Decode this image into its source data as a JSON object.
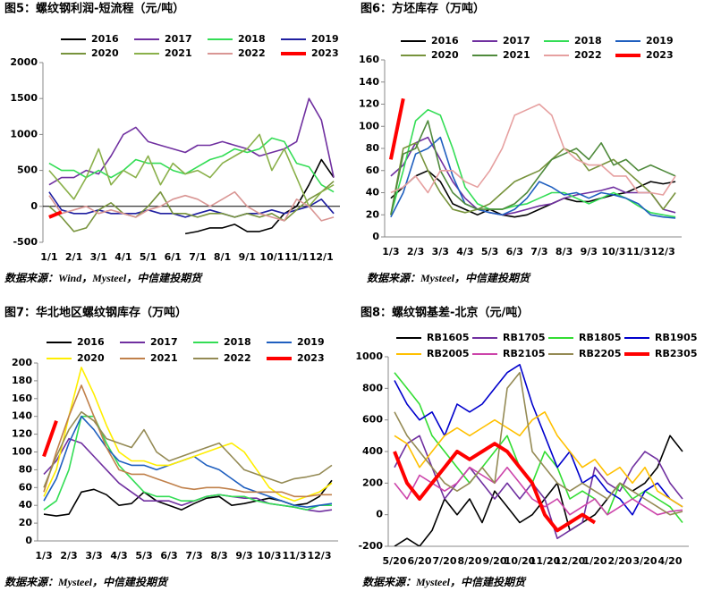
{
  "chart_data": [
    {
      "type": "line",
      "title": "图5：螺纹钢利润-短流程（元/吨）",
      "source": "数据来源：Wind，Mysteel，中信建投期货",
      "categories": [
        "1/1",
        null,
        "2/1",
        null,
        "3/1",
        null,
        "4/1",
        null,
        "5/1",
        null,
        "6/1",
        null,
        "7/1",
        null,
        "8/1",
        null,
        "9/1",
        null,
        "10/1",
        null,
        "11/1",
        null,
        "12/1",
        null
      ],
      "ylim": [
        -500,
        2000
      ],
      "yticks": [
        -500,
        0,
        500,
        1000,
        1500,
        2000
      ],
      "x_axis_at_zero": true,
      "series": [
        {
          "name": "2016",
          "color": "#000000",
          "values": [
            null,
            null,
            null,
            null,
            null,
            null,
            null,
            null,
            null,
            null,
            null,
            -380,
            -350,
            -300,
            -300,
            -250,
            -350,
            -350,
            -300,
            -100,
            0,
            300,
            650,
            400
          ]
        },
        {
          "name": "2017",
          "color": "#7030a0",
          "values": [
            300,
            400,
            400,
            500,
            450,
            700,
            1000,
            1100,
            900,
            850,
            800,
            750,
            850,
            850,
            900,
            850,
            800,
            700,
            750,
            800,
            900,
            1500,
            1200,
            400
          ]
        },
        {
          "name": "2018",
          "color": "#33dd55",
          "values": [
            600,
            500,
            500,
            400,
            500,
            400,
            500,
            650,
            600,
            600,
            500,
            450,
            550,
            650,
            700,
            800,
            750,
            800,
            950,
            900,
            600,
            550,
            300,
            200
          ]
        },
        {
          "name": "2019",
          "color": "#1f1fa0",
          "values": [
            200,
            -50,
            -100,
            -100,
            -50,
            -100,
            -100,
            -100,
            -50,
            -100,
            -100,
            -150,
            -100,
            -50,
            -100,
            -150,
            -100,
            -100,
            -50,
            -100,
            -50,
            0,
            100,
            -100
          ]
        },
        {
          "name": "2020",
          "color": "#77933c",
          "values": [
            0,
            -150,
            -350,
            -300,
            -50,
            50,
            -100,
            -150,
            0,
            200,
            -100,
            -100,
            -150,
            -100,
            -100,
            -150,
            -100,
            -150,
            -100,
            -200,
            -50,
            100,
            200,
            350
          ]
        },
        {
          "name": "2021",
          "color": "#8ab04a",
          "values": [
            500,
            300,
            100,
            400,
            800,
            300,
            500,
            400,
            700,
            300,
            600,
            450,
            500,
            400,
            600,
            700,
            800,
            1000,
            500,
            800,
            400,
            0,
            200,
            300
          ]
        },
        {
          "name": "2022",
          "color": "#d99694",
          "values": [
            150,
            -100,
            -50,
            0,
            -100,
            -50,
            -100,
            -150,
            -50,
            0,
            100,
            150,
            100,
            0,
            100,
            200,
            0,
            -100,
            -150,
            -200,
            100,
            0,
            -200,
            -150
          ]
        },
        {
          "name": "2023",
          "color": "#ff0000",
          "values": [
            -150,
            -80,
            null,
            null,
            null,
            null,
            null,
            null,
            null,
            null,
            null,
            null,
            null,
            null,
            null,
            null,
            null,
            null,
            null,
            null,
            null,
            null,
            null,
            null
          ]
        }
      ]
    },
    {
      "type": "line",
      "title": "图6：方坯库存（万吨）",
      "source": "数据来源：Mysteel，中信建投期货",
      "categories": [
        "1/3",
        null,
        "2/3",
        null,
        "3/3",
        null,
        "4/3",
        null,
        "5/3",
        null,
        "6/3",
        null,
        "7/3",
        null,
        "8/3",
        null,
        "9/3",
        null,
        "10/3",
        null,
        "11/3",
        null,
        "12/3",
        null
      ],
      "ylim": [
        0,
        160
      ],
      "yticks": [
        0,
        20,
        40,
        60,
        80,
        100,
        120,
        140,
        160
      ],
      "series": [
        {
          "name": "2016",
          "color": "#000000",
          "values": [
            35,
            45,
            55,
            60,
            50,
            30,
            25,
            20,
            25,
            20,
            18,
            20,
            25,
            30,
            35,
            32,
            32,
            35,
            38,
            40,
            45,
            50,
            48,
            50
          ]
        },
        {
          "name": "2017",
          "color": "#7030a0",
          "values": [
            55,
            65,
            85,
            90,
            70,
            50,
            35,
            25,
            22,
            20,
            22,
            25,
            28,
            30,
            35,
            38,
            40,
            42,
            45,
            40,
            40,
            40,
            25,
            22
          ]
        },
        {
          "name": "2018",
          "color": "#33dd55",
          "values": [
            20,
            60,
            105,
            115,
            110,
            80,
            45,
            30,
            25,
            25,
            28,
            30,
            35,
            40,
            40,
            35,
            30,
            35,
            40,
            35,
            28,
            22,
            20,
            18
          ]
        },
        {
          "name": "2019",
          "color": "#1f5fbf",
          "values": [
            18,
            40,
            75,
            80,
            90,
            55,
            30,
            25,
            22,
            20,
            25,
            35,
            50,
            45,
            38,
            40,
            35,
            40,
            38,
            35,
            30,
            20,
            18,
            17
          ]
        },
        {
          "name": "2020",
          "color": "#77933c",
          "values": [
            20,
            80,
            85,
            60,
            40,
            25,
            22,
            25,
            30,
            40,
            50,
            55,
            60,
            70,
            80,
            75,
            60,
            65,
            70,
            60,
            50,
            40,
            25,
            40
          ]
        },
        {
          "name": "2021",
          "color": "#4f8a3c",
          "values": [
            20,
            75,
            80,
            105,
            60,
            40,
            30,
            25,
            25,
            25,
            30,
            40,
            55,
            70,
            75,
            80,
            70,
            85,
            65,
            70,
            60,
            65,
            60,
            55
          ]
        },
        {
          "name": "2022",
          "color": "#e6a0a0",
          "values": [
            40,
            45,
            55,
            40,
            60,
            60,
            50,
            45,
            60,
            80,
            110,
            115,
            120,
            110,
            80,
            70,
            65,
            65,
            55,
            55,
            40,
            40,
            38,
            55
          ]
        },
        {
          "name": "2023",
          "color": "#ff0000",
          "values": [
            70,
            125,
            null,
            null,
            null,
            null,
            null,
            null,
            null,
            null,
            null,
            null,
            null,
            null,
            null,
            null,
            null,
            null,
            null,
            null,
            null,
            null,
            null,
            null
          ]
        }
      ]
    },
    {
      "type": "line",
      "title": "图7：华北地区螺纹钢库存（万吨）",
      "source": "数据来源：Mysteel，中信建投期货",
      "categories": [
        "1/3",
        null,
        "2/3",
        null,
        "3/3",
        null,
        "4/3",
        null,
        "5/3",
        null,
        "6/3",
        null,
        "7/3",
        null,
        "8/3",
        null,
        "9/3",
        null,
        "10/3",
        null,
        "11/3",
        null,
        "12/3",
        null
      ],
      "ylim": [
        0,
        200
      ],
      "yticks": [
        0,
        20,
        40,
        60,
        80,
        100,
        120,
        140,
        160,
        180,
        200
      ],
      "series": [
        {
          "name": "2016",
          "color": "#000000",
          "values": [
            30,
            28,
            30,
            55,
            58,
            52,
            40,
            42,
            55,
            45,
            40,
            35,
            42,
            48,
            50,
            40,
            42,
            45,
            48,
            45,
            40,
            42,
            50,
            68
          ]
        },
        {
          "name": "2017",
          "color": "#7030a0",
          "values": [
            75,
            90,
            115,
            110,
            95,
            80,
            65,
            55,
            45,
            45,
            45,
            40,
            45,
            50,
            52,
            50,
            48,
            48,
            42,
            40,
            38,
            35,
            33,
            35
          ]
        },
        {
          "name": "2018",
          "color": "#33dd55",
          "values": [
            35,
            45,
            80,
            140,
            140,
            110,
            85,
            70,
            55,
            50,
            50,
            45,
            45,
            50,
            52,
            50,
            50,
            45,
            42,
            40,
            38,
            35,
            40,
            40
          ]
        },
        {
          "name": "2019",
          "color": "#1f5fbf",
          "values": [
            45,
            70,
            110,
            140,
            125,
            105,
            90,
            85,
            85,
            80,
            85,
            90,
            95,
            85,
            80,
            70,
            60,
            55,
            50,
            45,
            40,
            38,
            40,
            42
          ]
        },
        {
          "name": "2020",
          "color": "#ffee00",
          "values": [
            50,
            80,
            140,
            195,
            165,
            130,
            100,
            90,
            90,
            85,
            85,
            90,
            95,
            100,
            105,
            110,
            100,
            80,
            60,
            50,
            45,
            50,
            55,
            65
          ]
        },
        {
          "name": "2021",
          "color": "#c0804a",
          "values": [
            55,
            100,
            140,
            175,
            140,
            105,
            80,
            75,
            75,
            70,
            65,
            60,
            58,
            60,
            60,
            58,
            55,
            55,
            55,
            55,
            50,
            50,
            52,
            52
          ]
        },
        {
          "name": "2022",
          "color": "#948a54",
          "values": [
            60,
            95,
            125,
            145,
            135,
            115,
            110,
            105,
            125,
            100,
            90,
            95,
            100,
            105,
            110,
            95,
            80,
            75,
            70,
            65,
            70,
            72,
            75,
            85
          ]
        },
        {
          "name": "2023",
          "color": "#ff0000",
          "values": [
            95,
            135,
            null,
            null,
            null,
            null,
            null,
            null,
            null,
            null,
            null,
            null,
            null,
            null,
            null,
            null,
            null,
            null,
            null,
            null,
            null,
            null,
            null,
            null
          ]
        }
      ]
    },
    {
      "type": "line",
      "title": "图8：螺纹钢基差-北京（元/吨）",
      "source": "数据来源：Mysteel，中信建投期货",
      "categories": [
        "5/20",
        null,
        "6/20",
        null,
        "7/20",
        null,
        "8/20",
        null,
        "9/20",
        null,
        "10/20",
        null,
        "11/20",
        null,
        "12/20",
        null,
        "1/20",
        null,
        "2/20",
        null,
        "3/20",
        null,
        "4/20",
        null
      ],
      "ylim": [
        -200,
        1000
      ],
      "yticks": [
        -200,
        0,
        200,
        400,
        600,
        800,
        1000
      ],
      "series": [
        {
          "name": "RB1605",
          "color": "#000000",
          "values": [
            -200,
            -150,
            -200,
            -100,
            100,
            0,
            100,
            -50,
            150,
            50,
            -50,
            0,
            100,
            200,
            -100,
            -50,
            0,
            100,
            200,
            150,
            200,
            300,
            500,
            400
          ]
        },
        {
          "name": "RB1705",
          "color": "#7030a0",
          "values": [
            300,
            450,
            500,
            300,
            100,
            200,
            300,
            200,
            100,
            200,
            100,
            200,
            100,
            -150,
            -100,
            -50,
            300,
            200,
            150,
            300,
            400,
            350,
            200,
            100
          ]
        },
        {
          "name": "RB1805",
          "color": "#33dd33",
          "values": [
            900,
            800,
            700,
            500,
            400,
            300,
            200,
            300,
            400,
            500,
            300,
            200,
            400,
            300,
            100,
            150,
            100,
            0,
            200,
            100,
            150,
            100,
            50,
            -50
          ]
        },
        {
          "name": "RB1905",
          "color": "#0000cc",
          "values": [
            850,
            700,
            600,
            650,
            500,
            700,
            650,
            700,
            800,
            900,
            950,
            700,
            500,
            300,
            400,
            200,
            250,
            150,
            100,
            0,
            150,
            200,
            100,
            50
          ]
        },
        {
          "name": "RB2005",
          "color": "#ffc000",
          "values": [
            500,
            450,
            300,
            400,
            500,
            550,
            500,
            550,
            600,
            550,
            500,
            600,
            650,
            500,
            400,
            300,
            350,
            250,
            300,
            200,
            300,
            150,
            100,
            50
          ]
        },
        {
          "name": "RB2105",
          "color": "#cc44aa",
          "values": [
            200,
            100,
            250,
            200,
            150,
            200,
            300,
            250,
            200,
            300,
            200,
            100,
            50,
            100,
            0,
            50,
            100,
            0,
            50,
            100,
            50,
            0,
            20,
            30
          ]
        },
        {
          "name": "RB2205",
          "color": "#948a54",
          "values": [
            650,
            500,
            400,
            300,
            200,
            150,
            200,
            300,
            200,
            800,
            900,
            400,
            300,
            200,
            150,
            200,
            150,
            100,
            200,
            150,
            100,
            50,
            0,
            20
          ]
        },
        {
          "name": "RB2305",
          "color": "#ff0000",
          "values": [
            400,
            200,
            100,
            200,
            300,
            400,
            350,
            400,
            450,
            400,
            300,
            200,
            0,
            -100,
            -50,
            0,
            -50,
            null,
            null,
            null,
            null,
            null,
            null,
            null
          ]
        }
      ]
    }
  ]
}
